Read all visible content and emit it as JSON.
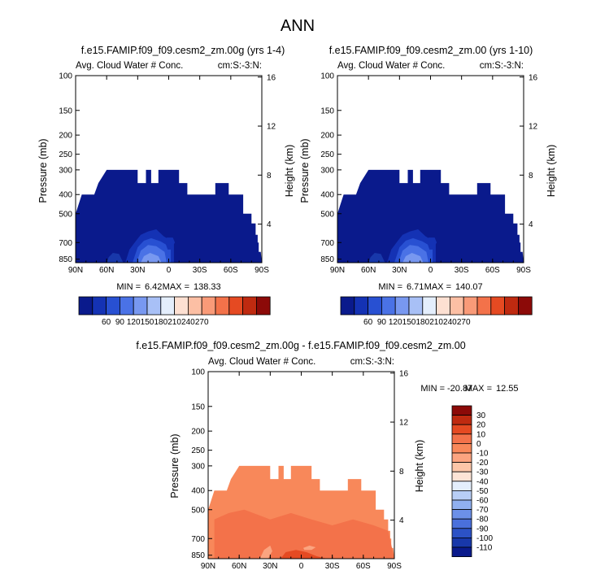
{
  "page": {
    "title": "ANN"
  },
  "chart_data": [
    {
      "type": "heatmap",
      "title": "f.e15.FAMIP.f09_f09.cesm2_zm.00g (yrs 1-4)",
      "left_label": "Avg. Cloud Water # Conc.",
      "right_label": "cm:S:-3:N:",
      "xlabel": "",
      "ylabel": "Pressure (mb)",
      "ylabel_right": "Height (km)",
      "x_ticks": [
        "90N",
        "60N",
        "30N",
        "0",
        "30S",
        "60S",
        "90S"
      ],
      "y_ticks": [
        "100",
        "150",
        "200",
        "250",
        "300",
        "400",
        "500",
        "700",
        "850"
      ],
      "y_ticks_right": [
        "16",
        "12",
        "8",
        "4"
      ],
      "stats": {
        "min_label": "MIN =",
        "min": "6.42",
        "max_label": "MAX =",
        "max": "138.33"
      },
      "colorbar_labels": [
        "60",
        "90",
        "120",
        "150",
        "180",
        "210",
        "240",
        "270"
      ],
      "colorbar_colors": [
        "#0a1a8c",
        "#1432b4",
        "#2850d2",
        "#4a72e6",
        "#7898f0",
        "#a8c0f6",
        "#e4eefc",
        "#fde0d2",
        "#fcbfa4",
        "#f99a78",
        "#f3724a",
        "#e54a22",
        "#bf2a10",
        "#8c0a08"
      ]
    },
    {
      "type": "heatmap",
      "title": "f.e15.FAMIP.f09_f09.cesm2_zm.00 (yrs 1-10)",
      "left_label": "Avg. Cloud Water # Conc.",
      "right_label": "cm:S:-3:N:",
      "xlabel": "",
      "ylabel": "Pressure (mb)",
      "ylabel_right": "Height (km)",
      "x_ticks": [
        "90N",
        "60N",
        "30N",
        "0",
        "30S",
        "60S",
        "90S"
      ],
      "y_ticks": [
        "100",
        "150",
        "200",
        "250",
        "300",
        "400",
        "500",
        "700",
        "850"
      ],
      "y_ticks_right": [
        "16",
        "12",
        "8",
        "4"
      ],
      "stats": {
        "min_label": "MIN =",
        "min": "6.71",
        "max_label": "MAX =",
        "max": "140.07"
      },
      "colorbar_labels": [
        "60",
        "90",
        "120",
        "150",
        "180",
        "210",
        "240",
        "270"
      ],
      "colorbar_colors": [
        "#0a1a8c",
        "#1432b4",
        "#2850d2",
        "#4a72e6",
        "#7898f0",
        "#a8c0f6",
        "#e4eefc",
        "#fde0d2",
        "#fcbfa4",
        "#f99a78",
        "#f3724a",
        "#e54a22",
        "#bf2a10",
        "#8c0a08"
      ]
    },
    {
      "type": "heatmap",
      "title": "f.e15.FAMIP.f09_f09.cesm2_zm.00g - f.e15.FAMIP.f09_f09.cesm2_zm.00",
      "left_label": "Avg. Cloud Water # Conc.",
      "right_label": "cm:S:-3:N:",
      "xlabel": "",
      "ylabel": "Pressure (mb)",
      "ylabel_right": "Height (km)",
      "x_ticks": [
        "90N",
        "60N",
        "30N",
        "0",
        "30S",
        "60S",
        "90S"
      ],
      "y_ticks": [
        "100",
        "150",
        "200",
        "250",
        "300",
        "400",
        "500",
        "700",
        "850"
      ],
      "y_ticks_right": [
        "16",
        "12",
        "8",
        "4"
      ],
      "stats": {
        "min_label": "MIN =",
        "min": "-20.87",
        "max_label": "MAX =",
        "max": "12.55"
      },
      "colorbar_labels": [
        "30",
        "20",
        "10",
        "0",
        "-10",
        "-20",
        "-30",
        "-40",
        "-50",
        "-60",
        "-70",
        "-80",
        "-90",
        "-100",
        "-110"
      ],
      "colorbar_colors": [
        "#8c0a08",
        "#bf2a10",
        "#e54a22",
        "#f3724a",
        "#f8885a",
        "#fba480",
        "#fcc6a8",
        "#fde4d6",
        "#e4eefc",
        "#b8cef6",
        "#90b0f0",
        "#6c90e8",
        "#4a70dc",
        "#2c52c6",
        "#1838aa",
        "#0a1a8c"
      ]
    }
  ]
}
